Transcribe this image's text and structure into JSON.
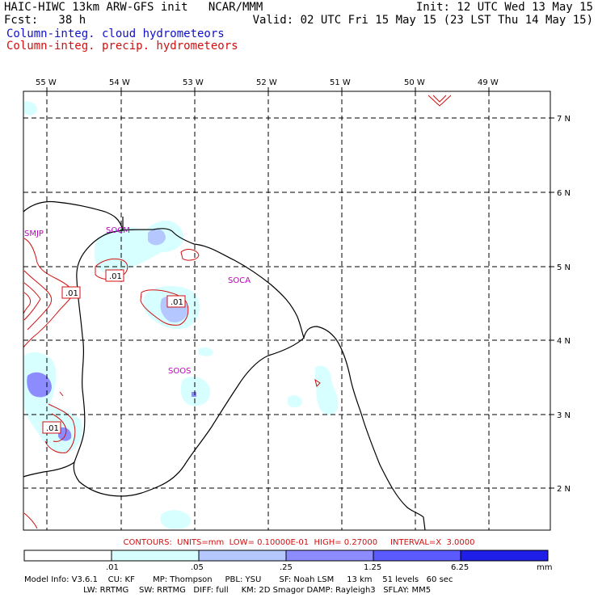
{
  "header": {
    "title": "HAIC-HIWC 13km ARW-GFS init   NCAR/MMM",
    "forecast": "Fcst:   38 h",
    "init": "Init: 12 UTC Wed 13 May 15",
    "valid": "Valid: 02 UTC Fri 15 May 15 (23 LST Thu 14 May 15)"
  },
  "legend": {
    "cloud": "Column-integ. cloud hydrometeors",
    "precip": "Column-integ. precip. hydrometeors",
    "cloud_color": "#1010c8",
    "precip_color": "#d01010"
  },
  "map": {
    "lon_labels": [
      "55 W",
      "54 W",
      "53 W",
      "52 W",
      "51 W",
      "50 W",
      "49 W"
    ],
    "lat_labels": [
      "7 N",
      "6 N",
      "5 N",
      "4 N",
      "3 N",
      "2 N"
    ],
    "region_labels": [
      "SMJP",
      "SOCM",
      "SOCA",
      "SOOS"
    ],
    "contour_labels": [
      ".01",
      ".01",
      ".01",
      ".01"
    ]
  },
  "contours_info": "CONTOURS:  UNITS=mm  LOW= 0.10000E-01  HIGH= 0.27000     INTERVAL=X  3.0000",
  "colorbar": {
    "labels": [
      ".01",
      ".05",
      ".25",
      "1.25",
      "6.25",
      "mm"
    ],
    "colors": [
      "#ffffff",
      "#d8ffff",
      "#b4c8ff",
      "#8c8cff",
      "#5a5aff",
      "#1e1ee6"
    ]
  },
  "model_info": {
    "line1": "Model Info: V3.6.1    CU: KF       MP: Thompson     PBL: YSU       SF: Noah LSM     13 km    51 levels   60 sec",
    "line2": "                       LW: RRTMG    SW: RRTMG   DIFF: full     KM: 2D Smagor DAMP: Rayleigh3   SFLAY: MM5"
  }
}
